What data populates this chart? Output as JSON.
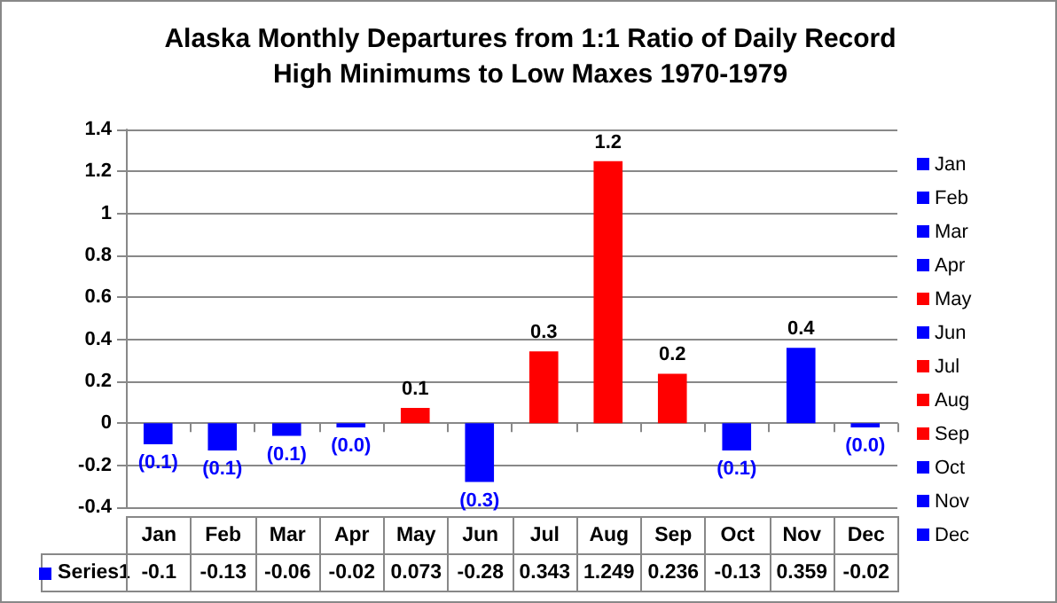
{
  "chart_data": {
    "type": "bar",
    "title": "Alaska Monthly Departures from 1:1 Ratio of Daily Record\nHigh Minimums to Low Maxes 1970-1979",
    "categories": [
      "Jan",
      "Feb",
      "Mar",
      "Apr",
      "May",
      "Jun",
      "Jul",
      "Aug",
      "Sep",
      "Oct",
      "Nov",
      "Dec"
    ],
    "series": [
      {
        "name": "Series1",
        "color": "#0000ff",
        "values": [
          -0.1,
          -0.13,
          -0.06,
          -0.02,
          0.073,
          -0.28,
          0.343,
          1.249,
          0.236,
          -0.13,
          0.359,
          -0.02
        ],
        "colors": [
          "#0000ff",
          "#0000ff",
          "#0000ff",
          "#0000ff",
          "#ff0000",
          "#0000ff",
          "#ff0000",
          "#ff0000",
          "#ff0000",
          "#0000ff",
          "#0000ff",
          "#0000ff"
        ],
        "value_labels": [
          "(0.1)",
          "(0.1)",
          "(0.1)",
          "(0.0)",
          "0.1",
          "(0.3)",
          "0.3",
          "1.2",
          "0.2",
          "(0.1)",
          "0.4",
          "(0.0)"
        ]
      }
    ],
    "annotations": [
      "-0.1",
      "-0.13",
      "-0.06",
      "-0.02",
      "0.073",
      "-0.28",
      "0.343",
      "1.249",
      "0.236",
      "-0.13",
      "0.359",
      "-0.02"
    ],
    "ylim": [
      -0.4,
      1.4
    ],
    "yticks": [
      -0.4,
      -0.2,
      0,
      0.2,
      0.4,
      0.6,
      0.8,
      1,
      1.2,
      1.4
    ],
    "grid": "y",
    "legend": "bottom left"
  }
}
